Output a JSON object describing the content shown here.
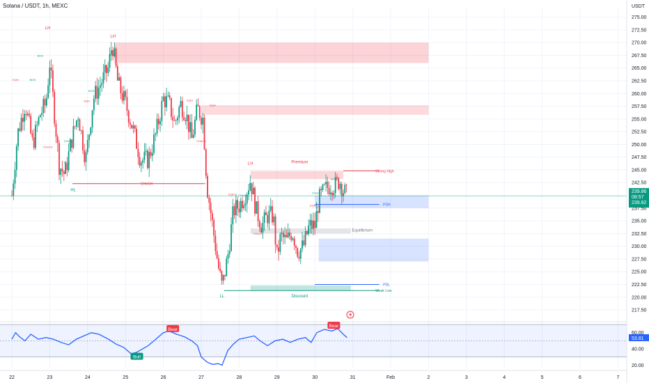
{
  "chart_data": [
    {
      "type": "candlestick",
      "title": "Solana / USDT, 1h, MEXC",
      "currency": "USDT",
      "x_ticks": [
        "22",
        "23",
        "24",
        "25",
        "26",
        "27",
        "28",
        "29",
        "30",
        "31",
        "Feb",
        "2",
        "3",
        "4",
        "5",
        "6",
        "7"
      ],
      "y_ticks": [
        "275.00",
        "272.50",
        "270.00",
        "267.50",
        "265.00",
        "262.50",
        "260.00",
        "257.50",
        "255.00",
        "252.50",
        "250.00",
        "247.50",
        "245.00",
        "242.50",
        "240.00",
        "237.50",
        "235.00",
        "232.50",
        "230.00",
        "227.50",
        "225.00",
        "222.50",
        "220.00",
        "217.50"
      ],
      "ylim": [
        216,
        277
      ],
      "price_path": [
        [
          22.0,
          240
        ],
        [
          22.15,
          252
        ],
        [
          22.35,
          258
        ],
        [
          22.55,
          250
        ],
        [
          22.75,
          256
        ],
        [
          22.9,
          258
        ],
        [
          23.0,
          266
        ],
        [
          23.1,
          258
        ],
        [
          23.25,
          246
        ],
        [
          23.4,
          244
        ],
        [
          23.55,
          250
        ],
        [
          23.75,
          256
        ],
        [
          23.95,
          247
        ],
        [
          24.15,
          259
        ],
        [
          24.35,
          262
        ],
        [
          24.55,
          265
        ],
        [
          24.65,
          270
        ],
        [
          24.8,
          262
        ],
        [
          25.0,
          258
        ],
        [
          25.2,
          253
        ],
        [
          25.4,
          247
        ],
        [
          25.6,
          247
        ],
        [
          25.8,
          252
        ],
        [
          26.0,
          259
        ],
        [
          26.15,
          258
        ],
        [
          26.3,
          254
        ],
        [
          26.45,
          258
        ],
        [
          26.6,
          256
        ],
        [
          26.75,
          251
        ],
        [
          26.9,
          257
        ],
        [
          27.05,
          255
        ],
        [
          27.15,
          242
        ],
        [
          27.3,
          234
        ],
        [
          27.45,
          226
        ],
        [
          27.55,
          222
        ],
        [
          27.7,
          228
        ],
        [
          27.85,
          237
        ],
        [
          28.0,
          238
        ],
        [
          28.15,
          240
        ],
        [
          28.3,
          243
        ],
        [
          28.45,
          237
        ],
        [
          28.6,
          234
        ],
        [
          28.75,
          236
        ],
        [
          28.9,
          236
        ],
        [
          29.0,
          228
        ],
        [
          29.1,
          232
        ],
        [
          29.25,
          231
        ],
        [
          29.4,
          233
        ],
        [
          29.55,
          229
        ],
        [
          29.7,
          230
        ],
        [
          29.85,
          234
        ],
        [
          30.0,
          234
        ],
        [
          30.1,
          239
        ],
        [
          30.25,
          241
        ],
        [
          30.4,
          242
        ],
        [
          30.55,
          242
        ],
        [
          30.65,
          243
        ],
        [
          30.75,
          241
        ],
        [
          30.85,
          240
        ]
      ],
      "price_labels": [
        {
          "text": "239.86",
          "color": "#089981"
        },
        {
          "text": "08:57",
          "color": "#089981"
        },
        {
          "text": "239.82",
          "color": "#089981"
        }
      ],
      "zones": [
        {
          "x1": 24.7,
          "x2": 33.0,
          "y1": 266.0,
          "y2": 270.0,
          "color": "#f23645",
          "opacity": 0.22
        },
        {
          "x1": 27.0,
          "x2": 33.0,
          "y1": 255.8,
          "y2": 257.7,
          "color": "#f23645",
          "opacity": 0.18
        },
        {
          "x1": 28.3,
          "x2": 30.75,
          "y1": 243.2,
          "y2": 244.8,
          "color": "#f23645",
          "opacity": 0.2
        },
        {
          "x1": 30.0,
          "x2": 33.0,
          "y1": 237.5,
          "y2": 240.0,
          "color": "#2962ff",
          "opacity": 0.18
        },
        {
          "x1": 28.3,
          "x2": 30.95,
          "y1": 232.5,
          "y2": 233.5,
          "color": "#b2b5be",
          "opacity": 0.35
        },
        {
          "x1": 30.1,
          "x2": 33.0,
          "y1": 227.0,
          "y2": 231.5,
          "color": "#2962ff",
          "opacity": 0.18
        },
        {
          "x1": 28.3,
          "x2": 30.95,
          "y1": 221.3,
          "y2": 222.3,
          "color": "#089981",
          "opacity": 0.25
        }
      ],
      "levels": [
        {
          "x1": 23.6,
          "x2": 27.1,
          "y": 242.3,
          "color": "#f23645",
          "label": "CHoCH",
          "label_x": 25.4
        },
        {
          "x1": 30.0,
          "x2": 31.7,
          "y": 238.2,
          "color": "#2962ff",
          "label": "PDH",
          "label_x": 31.8
        },
        {
          "x1": 30.0,
          "x2": 31.7,
          "y": 222.5,
          "color": "#2962ff",
          "label": "PDL",
          "label_x": 31.8
        },
        {
          "x1": 30.75,
          "x2": 31.7,
          "y": 244.8,
          "color": "#f23645",
          "label": "Strong High",
          "label_x": 31.6
        },
        {
          "x1": 27.6,
          "x2": 31.7,
          "y": 221.3,
          "color": "#089981",
          "label": "Weak Low",
          "label_x": 31.6
        }
      ],
      "annotations": [
        {
          "text": "LH",
          "x": 22.95,
          "y": 272.6,
          "color": "#f23645",
          "size": 6
        },
        {
          "text": "LH",
          "x": 24.67,
          "y": 271.0,
          "color": "#f23645",
          "size": 6
        },
        {
          "text": "HL",
          "x": 23.62,
          "y": 240.8,
          "color": "#089981",
          "size": 6
        },
        {
          "text": "LH",
          "x": 28.3,
          "y": 246.0,
          "color": "#f23645",
          "size": 6
        },
        {
          "text": "LL",
          "x": 27.55,
          "y": 220.0,
          "color": "#089981",
          "size": 6
        },
        {
          "text": "Premium",
          "x": 29.6,
          "y": 246.3,
          "color": "#f23645",
          "size": 6
        },
        {
          "text": "Equilibrium",
          "x": 31.25,
          "y": 232.9,
          "color": "#787b86",
          "size": 6
        },
        {
          "text": "Discount",
          "x": 29.6,
          "y": 220.0,
          "color": "#089981",
          "size": 6
        },
        {
          "text": "EQH",
          "x": 22.1,
          "y": 262.5,
          "color": "#f23645",
          "size": 4
        },
        {
          "text": "EQH",
          "x": 27.3,
          "y": 257.5,
          "color": "#f23645",
          "size": 4
        },
        {
          "text": "EQH",
          "x": 27.8,
          "y": 240.0,
          "color": "#f23645",
          "size": 4
        },
        {
          "text": "EQH",
          "x": 29.95,
          "y": 237.8,
          "color": "#f23645",
          "size": 4
        },
        {
          "text": "EQH",
          "x": 26.7,
          "y": 258.5,
          "color": "#f23645",
          "size": 4
        },
        {
          "text": "BOS",
          "x": 22.55,
          "y": 262.5,
          "color": "#089981",
          "size": 4
        },
        {
          "text": "BOS",
          "x": 22.75,
          "y": 267.2,
          "color": "#089981",
          "size": 4
        },
        {
          "text": "BOS",
          "x": 23.45,
          "y": 246.2,
          "color": "#089981",
          "size": 4
        },
        {
          "text": "BOS",
          "x": 24.1,
          "y": 260.3,
          "color": "#089981",
          "size": 4
        },
        {
          "text": "BOS",
          "x": 30.5,
          "y": 243.0,
          "color": "#089981",
          "size": 4
        },
        {
          "text": "BOS",
          "x": 24.65,
          "y": 267.4,
          "color": "#089981",
          "size": 4
        },
        {
          "text": "CHoCH",
          "x": 23.5,
          "y": 250.5,
          "color": "#089981",
          "size": 4
        },
        {
          "text": "CHoCH",
          "x": 22.95,
          "y": 249.3,
          "color": "#f23645",
          "size": 4
        },
        {
          "text": "CHoCH",
          "x": 27.0,
          "y": 250.5,
          "color": "#f23645",
          "size": 4
        },
        {
          "text": "CHoCH",
          "x": 28.1,
          "y": 239.8,
          "color": "#089981",
          "size": 4
        },
        {
          "text": "CHoCH",
          "x": 28.5,
          "y": 232.3,
          "color": "#f23645",
          "size": 4
        },
        {
          "text": "CHoCH",
          "x": 30.05,
          "y": 240.3,
          "color": "#089981",
          "size": 4
        },
        {
          "text": "EQH",
          "x": 23.98,
          "y": 258.3,
          "color": "#f23645",
          "size": 4
        }
      ]
    },
    {
      "type": "line",
      "title": "",
      "y_ticks": [
        "60.00",
        "40.00",
        "20.00"
      ],
      "ylim": [
        17,
        70
      ],
      "band": [
        30,
        70
      ],
      "value_label": {
        "text": "53.81",
        "color": "#2962ff"
      },
      "series": [
        {
          "values": [
            [
              22.0,
              52
            ],
            [
              22.1,
              60
            ],
            [
              22.2,
              55
            ],
            [
              22.35,
              50
            ],
            [
              22.5,
              58
            ],
            [
              22.7,
              52
            ],
            [
              22.9,
              54
            ],
            [
              23.1,
              52
            ],
            [
              23.3,
              48
            ],
            [
              23.5,
              45
            ],
            [
              23.7,
              52
            ],
            [
              23.9,
              56
            ],
            [
              24.1,
              60
            ],
            [
              24.3,
              58
            ],
            [
              24.55,
              52
            ],
            [
              24.75,
              46
            ],
            [
              24.95,
              42
            ],
            [
              25.15,
              34
            ],
            [
              25.3,
              36
            ],
            [
              25.45,
              40
            ],
            [
              25.6,
              44
            ],
            [
              25.8,
              52
            ],
            [
              26.0,
              60
            ],
            [
              26.15,
              62
            ],
            [
              26.35,
              58
            ],
            [
              26.55,
              55
            ],
            [
              26.75,
              50
            ],
            [
              26.9,
              44
            ],
            [
              27.0,
              30
            ],
            [
              27.15,
              24
            ],
            [
              27.3,
              21
            ],
            [
              27.45,
              22
            ],
            [
              27.55,
              20
            ],
            [
              27.7,
              38
            ],
            [
              27.85,
              46
            ],
            [
              28.0,
              52
            ],
            [
              28.2,
              54
            ],
            [
              28.4,
              56
            ],
            [
              28.55,
              50
            ],
            [
              28.75,
              44
            ],
            [
              28.95,
              50
            ],
            [
              29.15,
              52
            ],
            [
              29.35,
              48
            ],
            [
              29.55,
              52
            ],
            [
              29.75,
              54
            ],
            [
              29.9,
              48
            ],
            [
              30.05,
              60
            ],
            [
              30.25,
              64
            ],
            [
              30.45,
              62
            ],
            [
              30.6,
              65
            ],
            [
              30.75,
              58
            ],
            [
              30.85,
              53.81
            ]
          ]
        }
      ],
      "badges": [
        {
          "text": "Bear",
          "x": 26.25,
          "y": 65,
          "color": "#f23645"
        },
        {
          "text": "Bull",
          "x": 25.3,
          "y": 31,
          "color": "#089981"
        },
        {
          "text": "Bear",
          "x": 30.5,
          "y": 69,
          "color": "#f23645"
        }
      ]
    }
  ]
}
